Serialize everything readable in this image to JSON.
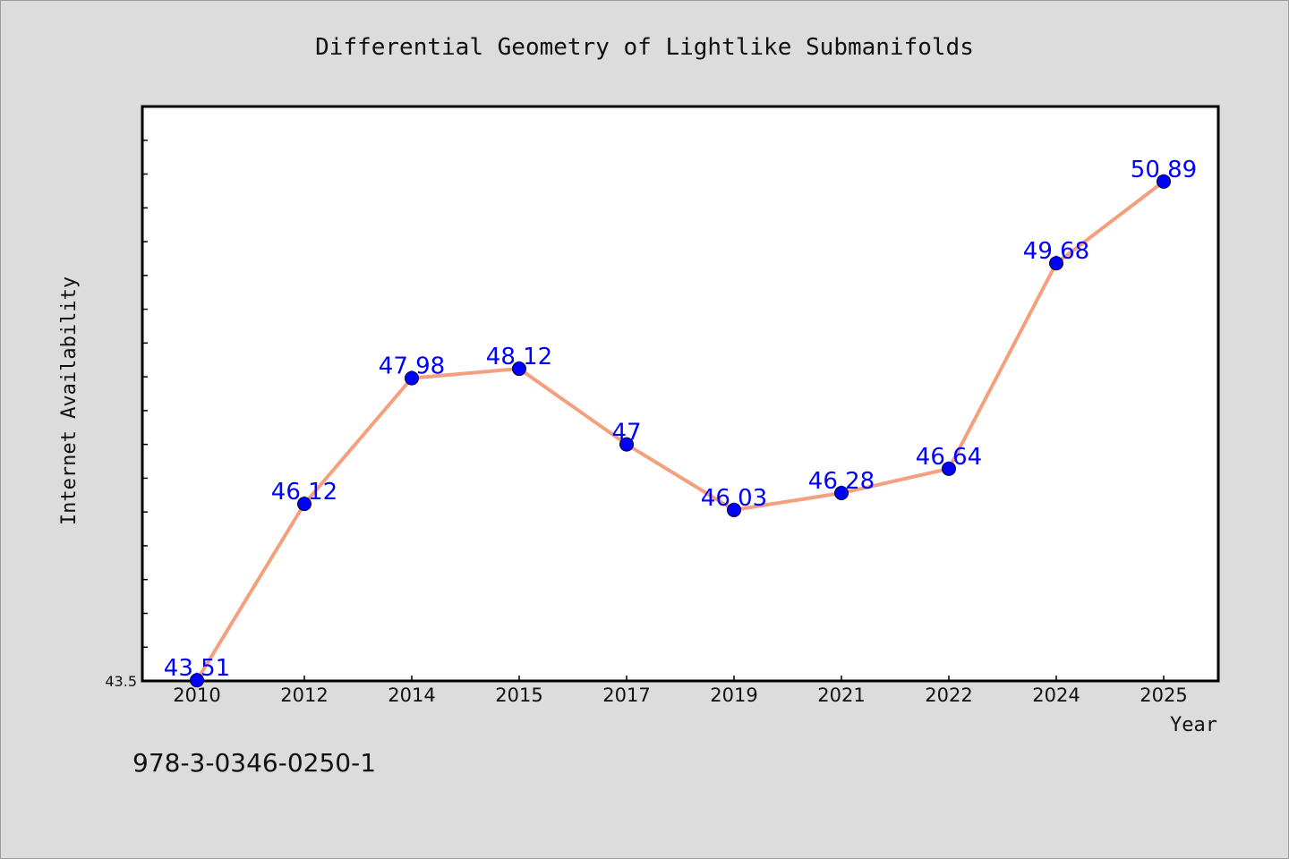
{
  "chart_data": {
    "type": "line",
    "title": "Differential Geometry of Lightlike Submanifolds",
    "xlabel": "Year",
    "ylabel": "Internet Availability",
    "categories": [
      "2010",
      "2012",
      "2014",
      "2015",
      "2017",
      "2019",
      "2021",
      "2022",
      "2024",
      "2025"
    ],
    "series": [
      {
        "values": [
          43.51,
          46.12,
          47.98,
          48.12,
          47,
          46.03,
          46.28,
          46.64,
          49.68,
          50.89
        ],
        "line_color": "#f4a07e",
        "marker_color": "#0000ff",
        "label_color": "#0000ff"
      }
    ],
    "data_labels": [
      "43.51",
      "46.12",
      "47.98",
      "48.12",
      "47",
      "46.03",
      "46.28",
      "46.64",
      "49.68",
      "50.89"
    ],
    "ylim": [
      43.5,
      52.0
    ],
    "y_tick_labels": [
      "43.5"
    ],
    "grid": false,
    "legend": "none"
  },
  "footer": {
    "isbn": "978-3-0346-0250-1"
  },
  "colors": {
    "background": "#dcdcdc",
    "plot_area": "#ffffff",
    "axis": "#000000"
  }
}
